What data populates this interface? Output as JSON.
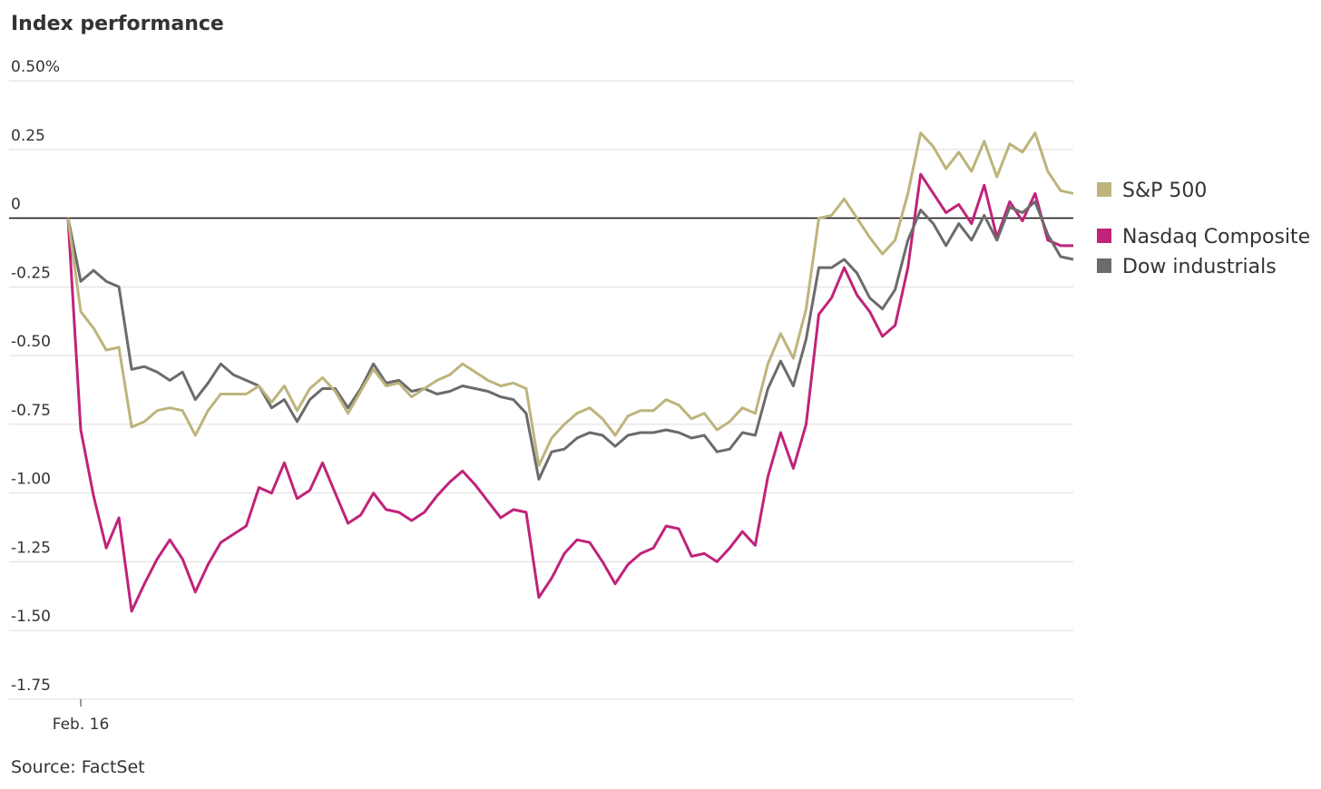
{
  "chart_data": {
    "type": "line",
    "title": "Index performance",
    "source": "Source: FactSet",
    "categories": [
      null,
      "Feb. 16",
      null,
      null,
      null,
      null,
      null,
      null,
      null,
      null,
      null,
      null,
      null,
      null,
      null,
      null,
      null,
      null,
      null,
      null,
      null,
      null,
      null,
      null,
      null,
      null,
      null,
      null,
      null,
      null,
      null,
      null,
      null,
      null,
      null,
      null,
      null,
      null,
      null,
      null,
      null,
      null,
      null,
      null,
      null,
      null,
      null,
      null,
      null,
      null,
      null,
      null,
      null,
      null,
      null,
      null,
      null,
      null,
      null,
      null,
      null,
      null,
      null,
      null,
      null,
      null,
      null,
      null,
      null,
      null,
      null,
      null,
      null,
      null,
      null,
      null,
      null,
      null,
      null,
      null
    ],
    "series": [
      {
        "name": "S&P 500",
        "color": "#bdb47c",
        "values": [
          0,
          -0.34,
          -0.4,
          -0.48,
          -0.47,
          -0.76,
          -0.74,
          -0.7,
          -0.69,
          -0.7,
          -0.79,
          -0.7,
          -0.64,
          -0.64,
          -0.64,
          -0.61,
          -0.67,
          -0.61,
          -0.7,
          -0.62,
          -0.58,
          -0.63,
          -0.71,
          -0.63,
          -0.55,
          -0.61,
          -0.6,
          -0.65,
          -0.62,
          -0.59,
          -0.57,
          -0.53,
          -0.56,
          -0.59,
          -0.61,
          -0.6,
          -0.62,
          -0.9,
          -0.8,
          -0.75,
          -0.71,
          -0.69,
          -0.73,
          -0.79,
          -0.72,
          -0.7,
          -0.7,
          -0.66,
          -0.68,
          -0.73,
          -0.71,
          -0.77,
          -0.74,
          -0.69,
          -0.71,
          -0.53,
          -0.42,
          -0.51,
          -0.33,
          0,
          0.01,
          0.07,
          0,
          -0.07,
          -0.13,
          -0.08,
          0.09,
          0.31,
          0.26,
          0.18,
          0.24,
          0.17,
          0.28,
          0.15,
          0.27,
          0.24,
          0.31,
          0.17,
          0.1,
          0.09
        ]
      },
      {
        "name": "Nasdaq Composite",
        "color": "#c0237a",
        "values": [
          0,
          -0.77,
          -1.01,
          -1.2,
          -1.09,
          -1.43,
          -1.33,
          -1.24,
          -1.17,
          -1.24,
          -1.36,
          -1.26,
          -1.18,
          -1.15,
          -1.12,
          -0.98,
          -1.0,
          -0.89,
          -1.02,
          -0.99,
          -0.89,
          -1.0,
          -1.11,
          -1.08,
          -1.0,
          -1.06,
          -1.07,
          -1.1,
          -1.07,
          -1.01,
          -0.96,
          -0.92,
          -0.97,
          -1.03,
          -1.09,
          -1.06,
          -1.07,
          -1.38,
          -1.31,
          -1.22,
          -1.17,
          -1.18,
          -1.25,
          -1.33,
          -1.26,
          -1.22,
          -1.2,
          -1.12,
          -1.13,
          -1.23,
          -1.22,
          -1.25,
          -1.2,
          -1.14,
          -1.19,
          -0.94,
          -0.78,
          -0.91,
          -0.75,
          -0.35,
          -0.29,
          -0.18,
          -0.28,
          -0.34,
          -0.43,
          -0.39,
          -0.18,
          0.16,
          0.09,
          0.02,
          0.05,
          -0.02,
          0.12,
          -0.07,
          0.06,
          -0.01,
          0.09,
          -0.08,
          -0.1,
          -0.1
        ]
      },
      {
        "name": "Dow industrials",
        "color": "#6b6b6b",
        "values": [
          0,
          -0.23,
          -0.19,
          -0.23,
          -0.25,
          -0.55,
          -0.54,
          -0.56,
          -0.59,
          -0.56,
          -0.66,
          -0.6,
          -0.53,
          -0.57,
          -0.59,
          -0.61,
          -0.69,
          -0.66,
          -0.74,
          -0.66,
          -0.62,
          -0.62,
          -0.69,
          -0.62,
          -0.53,
          -0.6,
          -0.59,
          -0.63,
          -0.62,
          -0.64,
          -0.63,
          -0.61,
          -0.62,
          -0.63,
          -0.65,
          -0.66,
          -0.71,
          -0.95,
          -0.85,
          -0.84,
          -0.8,
          -0.78,
          -0.79,
          -0.83,
          -0.79,
          -0.78,
          -0.78,
          -0.77,
          -0.78,
          -0.8,
          -0.79,
          -0.85,
          -0.84,
          -0.78,
          -0.79,
          -0.62,
          -0.52,
          -0.61,
          -0.44,
          -0.18,
          -0.18,
          -0.15,
          -0.2,
          -0.29,
          -0.33,
          -0.26,
          -0.08,
          0.03,
          -0.02,
          -0.1,
          -0.02,
          -0.08,
          0.01,
          -0.08,
          0.04,
          0.02,
          0.06,
          -0.06,
          -0.14,
          -0.15
        ]
      }
    ],
    "ylim": [
      -1.75,
      0.5
    ],
    "yticks": [
      {
        "value": 0.5,
        "label": "0.50%"
      },
      {
        "value": 0.25,
        "label": "0.25"
      },
      0,
      {
        "value": -0.25,
        "label": "-0.25"
      },
      {
        "value": -0.5,
        "label": "-0.50"
      },
      {
        "value": -0.75,
        "label": "-0.75"
      },
      {
        "value": -1,
        "label": "-1.00"
      },
      {
        "value": -1.25,
        "label": "-1.25"
      },
      {
        "value": -1.5,
        "label": "-1.50"
      },
      {
        "value": -1.75,
        "label": "-1.75"
      }
    ],
    "grid": true,
    "legend": "right"
  }
}
